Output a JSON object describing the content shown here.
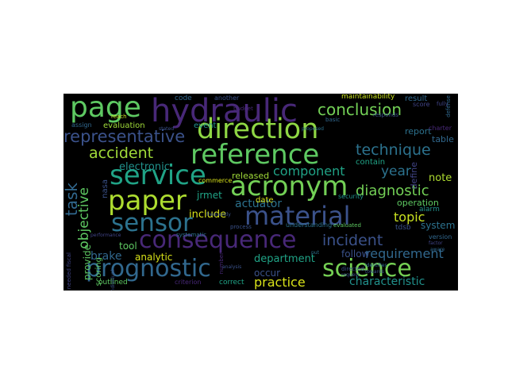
{
  "word_cloud": {
    "background": "#000000",
    "words": [
      {
        "text": "page",
        "color": "#5ec962"
      },
      {
        "text": "hydraulic",
        "color": "#482878"
      },
      {
        "text": "direction",
        "color": "#8fd744"
      },
      {
        "text": "conclusion",
        "color": "#73d056"
      },
      {
        "text": "representative",
        "color": "#3b528b"
      },
      {
        "text": "reference",
        "color": "#5ec962"
      },
      {
        "text": "technique",
        "color": "#2c728e"
      },
      {
        "text": "accident",
        "color": "#a0da39"
      },
      {
        "text": "service",
        "color": "#20a386"
      },
      {
        "text": "paper",
        "color": "#addc30"
      },
      {
        "text": "acronym",
        "color": "#73d056"
      },
      {
        "text": "diagnostic",
        "color": "#73d056"
      },
      {
        "text": "sensor",
        "color": "#2c728e"
      },
      {
        "text": "material",
        "color": "#3b528b"
      },
      {
        "text": "consequence",
        "color": "#482878"
      },
      {
        "text": "prognostic",
        "color": "#31688e"
      },
      {
        "text": "science",
        "color": "#75d054"
      },
      {
        "text": "incident",
        "color": "#3b528b"
      },
      {
        "text": "component",
        "color": "#20a386"
      },
      {
        "text": "year",
        "color": "#2c728e"
      },
      {
        "text": "task",
        "color": "#31688e"
      },
      {
        "text": "objective",
        "color": "#5ec962"
      },
      {
        "text": "topic",
        "color": "#c8e020"
      },
      {
        "text": "actuator",
        "color": "#2c728e"
      },
      {
        "text": "include",
        "color": "#d8e219"
      },
      {
        "text": "brake",
        "color": "#31688e"
      },
      {
        "text": "analytic",
        "color": "#d8e219"
      },
      {
        "text": "requirement",
        "color": "#31688e"
      },
      {
        "text": "practice",
        "color": "#d8e219"
      },
      {
        "text": "characteristic",
        "color": "#21918c"
      },
      {
        "text": "department",
        "color": "#20a386"
      },
      {
        "text": "electronic",
        "color": "#21918c"
      },
      {
        "text": "provide",
        "color": "#5ec962"
      },
      {
        "text": "report",
        "color": "#2c728e"
      },
      {
        "text": "result",
        "color": "#31688e"
      },
      {
        "text": "table",
        "color": "#31688e"
      },
      {
        "text": "note",
        "color": "#addc30"
      },
      {
        "text": "define",
        "color": "#414487"
      },
      {
        "text": "contain",
        "color": "#20a386"
      },
      {
        "text": "operation",
        "color": "#5ec962"
      },
      {
        "text": "system",
        "color": "#2c728e"
      },
      {
        "text": "follow",
        "color": "#3b528b"
      },
      {
        "text": "tool",
        "color": "#5ec962"
      },
      {
        "text": "occur",
        "color": "#3b528b"
      },
      {
        "text": "scoring",
        "color": "#5ec962"
      },
      {
        "text": "jrmet",
        "color": "#20a386"
      },
      {
        "text": "released",
        "color": "#a0da39"
      },
      {
        "text": "date",
        "color": "#d8e219"
      },
      {
        "text": "evaluation",
        "color": "#a0da39"
      },
      {
        "text": "event",
        "color": "#21918c"
      },
      {
        "text": "maintainability",
        "color": "#c8e020"
      },
      {
        "text": "code",
        "color": "#31688e"
      },
      {
        "text": "another",
        "color": "#3b528b"
      },
      {
        "text": "score",
        "color": "#414487"
      },
      {
        "text": "charter",
        "color": "#482878"
      },
      {
        "text": "tdsb",
        "color": "#3b528b"
      },
      {
        "text": "alarm",
        "color": "#21918c"
      },
      {
        "text": "version",
        "color": "#31688e"
      },
      {
        "text": "nasa",
        "color": "#3b528b"
      },
      {
        "text": "outlined",
        "color": "#5ec962"
      },
      {
        "text": "criterion",
        "color": "#482878"
      },
      {
        "text": "correct",
        "color": "#20a386"
      },
      {
        "text": "understanding",
        "color": "#2c728e"
      },
      {
        "text": "evaluated",
        "color": "#5ec962"
      },
      {
        "text": "process",
        "color": "#3b528b"
      },
      {
        "text": "commerce",
        "color": "#d8e219"
      },
      {
        "text": "security",
        "color": "#21918c"
      },
      {
        "text": "directed",
        "color": "#3b528b"
      },
      {
        "text": "request",
        "color": "#3b528b"
      },
      {
        "text": "assign",
        "color": "#31688e"
      },
      {
        "text": "responds",
        "color": "#3b528b"
      },
      {
        "text": "basic",
        "color": "#31688e"
      },
      {
        "text": "budget",
        "color": "#482878"
      },
      {
        "text": "systematic",
        "color": "#2c728e"
      },
      {
        "text": "fiscal",
        "color": "#414487"
      },
      {
        "text": "needed",
        "color": "#414487"
      },
      {
        "text": "individual",
        "color": "#3b528b"
      },
      {
        "text": "identifies",
        "color": "#31688e"
      },
      {
        "text": "towards",
        "color": "#3b528b"
      },
      {
        "text": "reach",
        "color": "#c8e020"
      },
      {
        "text": "fully",
        "color": "#414487"
      },
      {
        "text": "stated",
        "color": "#3b528b"
      },
      {
        "text": "proposed",
        "color": "#2c728e"
      },
      {
        "text": "factor",
        "color": "#414487"
      },
      {
        "text": "number",
        "color": "#482878"
      },
      {
        "text": "defense",
        "color": "#31688e"
      },
      {
        "text": "aware",
        "color": "#31688e"
      },
      {
        "text": "frequently",
        "color": "#3b528b"
      },
      {
        "text": "analysis",
        "color": "#3b528b"
      },
      {
        "text": "performance",
        "color": "#414487"
      },
      {
        "text": "put",
        "color": "#2c728e"
      }
    ]
  }
}
